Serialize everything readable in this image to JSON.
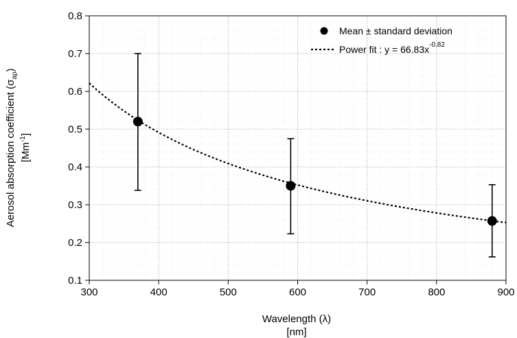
{
  "chart_data": {
    "type": "scatter",
    "xlabel": "Wavelength (λ)",
    "xunit": "[nm]",
    "ylabel_main": "Aerosol absorption coefficient (σ",
    "ylabel_sub": "ap",
    "ylabel_close": ")",
    "yunit_base": "[Mm",
    "yunit_sup": "-1",
    "yunit_close": "]",
    "xlim": [
      300,
      900
    ],
    "ylim": [
      0.1,
      0.8
    ],
    "x_ticks": [
      300,
      400,
      500,
      600,
      700,
      800,
      900
    ],
    "y_ticks": [
      0.1,
      0.2,
      0.3,
      0.4,
      0.5,
      0.6,
      0.7,
      0.8
    ],
    "x_tick_labels": [
      "300",
      "400",
      "500",
      "600",
      "700",
      "800",
      "900"
    ],
    "y_tick_labels": [
      "0.1",
      "0.2",
      "0.3",
      "0.4",
      "0.5",
      "0.6",
      "0.7",
      "0.8"
    ],
    "grid": true,
    "series": [
      {
        "name": "Mean ± standard deviation",
        "style": "points-with-errorbars",
        "color": "#000000",
        "points": [
          {
            "x": 370,
            "y": 0.52,
            "ylow": 0.338,
            "yhigh": 0.7
          },
          {
            "x": 590,
            "y": 0.35,
            "ylow": 0.223,
            "yhigh": 0.475
          },
          {
            "x": 880,
            "y": 0.257,
            "ylow": 0.162,
            "yhigh": 0.353
          }
        ]
      },
      {
        "name": "Power fit : y = 66.83x",
        "name_sup": "-0.82",
        "style": "dotted-line",
        "color": "#000000",
        "fit": {
          "a": 66.83,
          "b": -0.82
        }
      }
    ],
    "legend_position": "top-right"
  }
}
